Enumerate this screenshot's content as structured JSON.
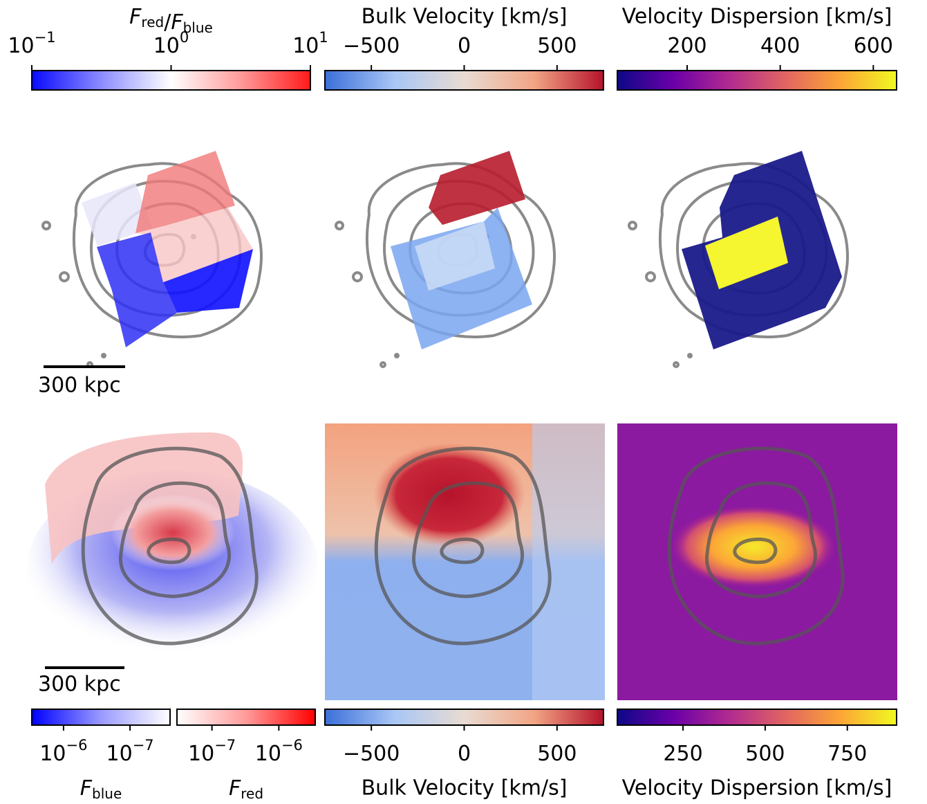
{
  "chart_data": [
    {
      "type": "colorbar",
      "scale": "log",
      "label_parts": [
        {
          "text": "F",
          "sub": "red"
        },
        {
          "text": "/"
        },
        {
          "text": "F",
          "sub": "blue"
        }
      ],
      "xlim": [
        0.1,
        10
      ],
      "xticks": [
        {
          "value": 0.1,
          "label": "10",
          "exponent": "−1"
        },
        {
          "value": 1,
          "label": "10",
          "exponent": "0"
        },
        {
          "value": 10,
          "label": "10",
          "exponent": "1"
        }
      ],
      "colormap": [
        "#0a0aff",
        "#8c8cff",
        "#ffffff",
        "#ff9a9a",
        "#ff1a1a"
      ]
    },
    {
      "type": "colorbar",
      "scale": "linear",
      "label": "Bulk Velocity [km/s]",
      "xlim": [
        -750,
        750
      ],
      "xticks": [
        {
          "value": -500,
          "label": "−500"
        },
        0,
        500
      ],
      "colormap": [
        "#3b6fd9",
        "#a9c6f5",
        "#e8dcd2",
        "#f2a585",
        "#b5132b"
      ]
    },
    {
      "type": "colorbar",
      "scale": "linear",
      "label": "Velocity Dispersion [km/s]",
      "xlim": [
        50,
        650
      ],
      "xticks": [
        200,
        400,
        600
      ],
      "colormap": [
        "#0d0887",
        "#6a00a8",
        "#b12a90",
        "#e16462",
        "#fca636",
        "#f0f921"
      ]
    },
    {
      "type": "colorbar",
      "scale": "log",
      "label_parts": [
        {
          "text": "F",
          "sub": "blue"
        }
      ],
      "xlim": [
        3e-06,
        2.5e-08
      ],
      "xticks": [
        {
          "value": 1e-06,
          "label": "10",
          "exponent": "−6"
        },
        {
          "value": 1e-07,
          "label": "10",
          "exponent": "−7"
        }
      ],
      "colormap": [
        "#0000ff",
        "#9a9aff",
        "#ffffff"
      ]
    },
    {
      "type": "colorbar",
      "scale": "log",
      "label_parts": [
        {
          "text": "F",
          "sub": "red"
        }
      ],
      "xlim": [
        3e-08,
        3.5e-06
      ],
      "xticks": [
        {
          "value": 1e-07,
          "label": "10",
          "exponent": "−7"
        },
        {
          "value": 1e-06,
          "label": "10",
          "exponent": "−6"
        }
      ],
      "colormap": [
        "#ffffff",
        "#ff9a9a",
        "#ff0000"
      ]
    },
    {
      "type": "colorbar",
      "scale": "linear",
      "label": "Bulk Velocity [km/s]",
      "xlim": [
        -750,
        750
      ],
      "xticks": [
        {
          "value": -500,
          "label": "−500"
        },
        0,
        500
      ],
      "colormap": [
        "#3b6fd9",
        "#a9c6f5",
        "#e8dcd2",
        "#f2a585",
        "#b5132b"
      ]
    },
    {
      "type": "colorbar",
      "scale": "linear",
      "label": "Velocity Dispersion [km/s]",
      "xlim": [
        50,
        900
      ],
      "xticks": [
        250,
        500,
        750
      ],
      "colormap": [
        "#0d0887",
        "#6a00a8",
        "#b12a90",
        "#e16462",
        "#fca636",
        "#f0f921"
      ]
    }
  ],
  "scale_bars": [
    "300 kpc",
    "300 kpc"
  ]
}
